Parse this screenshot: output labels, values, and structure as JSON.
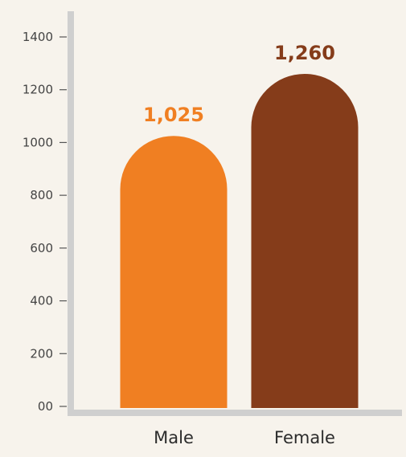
{
  "colors": {
    "background": "#f7f3ec",
    "axis": "#cfcfcf",
    "male_bar": "#f07f22",
    "female_bar": "#853c1a"
  },
  "chart_data": {
    "type": "bar",
    "categories": [
      "Male",
      "Female"
    ],
    "values": [
      1025,
      1260
    ],
    "value_labels": [
      "1,025",
      "1,260"
    ],
    "bar_colors": [
      "#f07f22",
      "#853c1a"
    ],
    "ylim": [
      0,
      1400
    ],
    "yticks": [
      0,
      200,
      400,
      600,
      800,
      1000,
      1200,
      1400
    ],
    "ytick_labels": [
      "00",
      "200",
      "400",
      "600",
      "800",
      "1000",
      "1200",
      "1400"
    ],
    "bar_style": "rounded-top",
    "grid": false,
    "legend": "none",
    "title": "",
    "xlabel": "",
    "ylabel": ""
  }
}
